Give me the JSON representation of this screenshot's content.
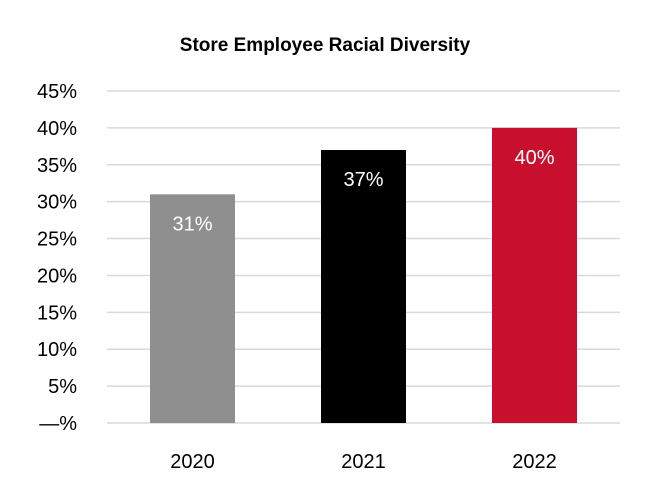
{
  "chart_data": {
    "type": "bar",
    "title": "Store Employee Racial Diversity",
    "categories": [
      "2020",
      "2021",
      "2022"
    ],
    "values": [
      31,
      37,
      40
    ],
    "data_labels": [
      "31%",
      "37%",
      "40%"
    ],
    "colors": [
      "#8f8f8f",
      "#000000",
      "#c8102e"
    ],
    "xlabel": "",
    "ylabel": "",
    "ylim": [
      0,
      45
    ],
    "y_ticks": [
      0,
      5,
      10,
      15,
      20,
      25,
      30,
      35,
      40,
      45
    ],
    "y_tick_labels": [
      "—%",
      "5%",
      "10%",
      "15%",
      "20%",
      "25%",
      "30%",
      "35%",
      "40%",
      "45%"
    ],
    "grid": true,
    "legend": "none"
  }
}
